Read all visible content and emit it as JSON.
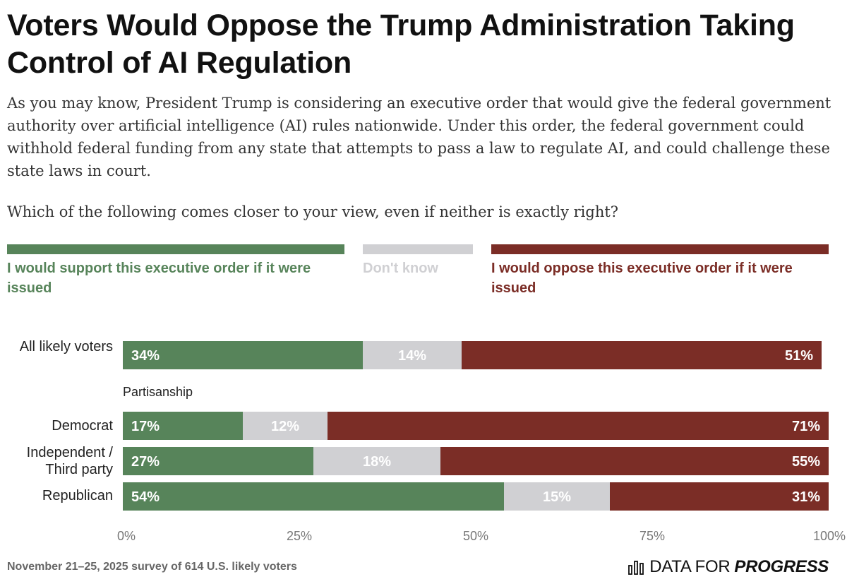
{
  "title": "Voters Would Oppose the Trump Administration Taking Control of AI Regulation",
  "subtitle": "As you may know, President Trump is considering an executive order that would give the federal government authority over artificial intelligence (AI) rules nationwide. Under this order, the federal government could withhold federal funding from any state that attempts to pass a law to regulate AI, and could challenge these state laws in court.",
  "question": "Which of the following comes closer to your view, even if neither is exactly right?",
  "colors": {
    "support": "#57845a",
    "dont_know": "#d0d0d3",
    "oppose": "#7b2d26"
  },
  "chart_data": {
    "type": "bar",
    "orientation": "horizontal",
    "stacked": true,
    "categories": [
      "All likely voters",
      "Democrat",
      "Independent / Third party",
      "Republican"
    ],
    "groups": [
      {
        "label": "Partisanship",
        "categories": [
          "Democrat",
          "Independent / Third party",
          "Republican"
        ]
      }
    ],
    "series": [
      {
        "name": "I would support this executive order if it were issued",
        "values": [
          34,
          17,
          27,
          54
        ]
      },
      {
        "name": "Don't know",
        "values": [
          14,
          12,
          18,
          15
        ]
      },
      {
        "name": "I would oppose this executive order if it were issued",
        "values": [
          51,
          71,
          55,
          31
        ]
      }
    ],
    "value_labels": [
      [
        "34%",
        "14%",
        "51%"
      ],
      [
        "17%",
        "12%",
        "71%"
      ],
      [
        "27%",
        "18%",
        "55%"
      ],
      [
        "54%",
        "15%",
        "31%"
      ]
    ],
    "xlim": [
      0,
      100
    ],
    "xticks": [
      "0%",
      "25%",
      "50%",
      "75%",
      "100%"
    ]
  },
  "legend": {
    "support": "I would support this executive order if it were issued",
    "dont_know": "Don't know",
    "oppose": "I would oppose this executive order if it were issued"
  },
  "labels": {
    "all": "All likely voters",
    "democrat": "Democrat",
    "independent": "Independent / Third party",
    "republican": "Republican",
    "section": "Partisanship"
  },
  "footnote": "November 21–25, 2025 survey of 614 U.S. likely voters",
  "brand": {
    "part1": "DATA FOR",
    "part2": "PROGRESS"
  }
}
